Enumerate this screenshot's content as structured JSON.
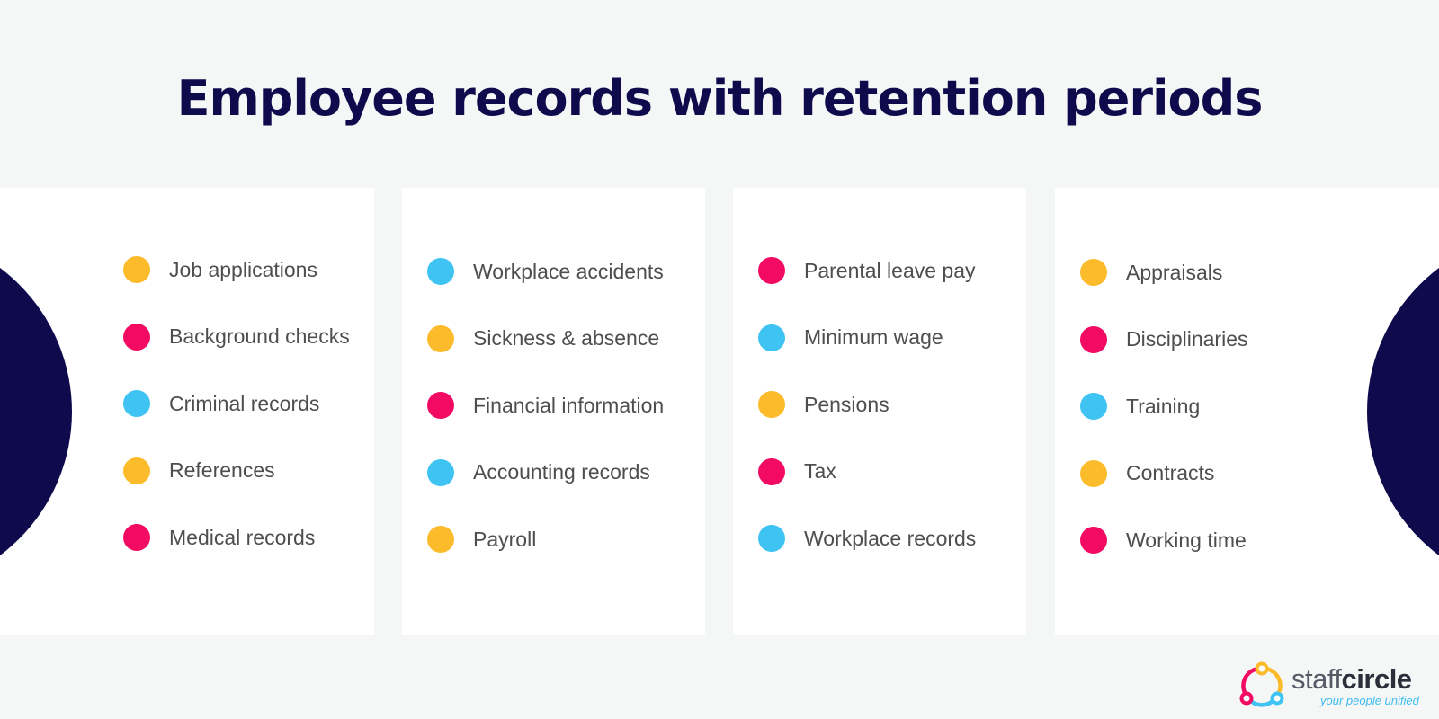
{
  "title": "Employee records with retention periods",
  "colors": {
    "yellow": "#fbbb2a",
    "pink": "#f20a63",
    "blue": "#3ec3f3",
    "navy": "#0e0a4b"
  },
  "columns": [
    {
      "items": [
        {
          "label": "Job applications",
          "color": "#fbbb2a"
        },
        {
          "label": "Background checks",
          "color": "#f20a63"
        },
        {
          "label": "Criminal records",
          "color": "#3ec3f3"
        },
        {
          "label": "References",
          "color": "#fbbb2a"
        },
        {
          "label": "Medical records",
          "color": "#f20a63"
        }
      ]
    },
    {
      "items": [
        {
          "label": "Workplace accidents",
          "color": "#3ec3f3"
        },
        {
          "label": "Sickness & absence",
          "color": "#fbbb2a"
        },
        {
          "label": "Financial information",
          "color": "#f20a63"
        },
        {
          "label": "Accounting records",
          "color": "#3ec3f3"
        },
        {
          "label": "Payroll",
          "color": "#fbbb2a"
        }
      ]
    },
    {
      "items": [
        {
          "label": "Parental leave pay",
          "color": "#f20a63"
        },
        {
          "label": "Minimum wage",
          "color": "#3ec3f3"
        },
        {
          "label": "Pensions",
          "color": "#fbbb2a"
        },
        {
          "label": "Tax",
          "color": "#f20a63"
        },
        {
          "label": "Workplace records",
          "color": "#3ec3f3"
        }
      ]
    },
    {
      "items": [
        {
          "label": "Appraisals",
          "color": "#fbbb2a"
        },
        {
          "label": "Disciplinaries",
          "color": "#f20a63"
        },
        {
          "label": "Training",
          "color": "#3ec3f3"
        },
        {
          "label": "Contracts",
          "color": "#fbbb2a"
        },
        {
          "label": "Working time",
          "color": "#f20a63"
        }
      ]
    }
  ],
  "logo": {
    "word_light": "staff",
    "word_bold": "circle",
    "tagline": "your people unified"
  }
}
